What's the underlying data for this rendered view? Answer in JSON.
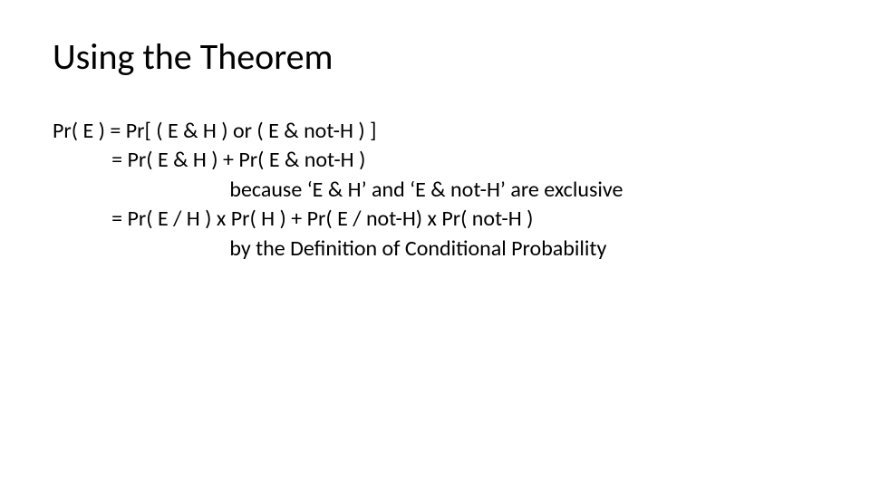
{
  "slide": {
    "title": "Using the Theorem",
    "text_color": "#000000",
    "background_color": "#ffffff",
    "title_fontsize": 40,
    "body_fontsize": 24,
    "lines": [
      "Pr( E ) = Pr[ ( E & H ) or ( E & not-H ) ]",
      "            = Pr( E & H ) + Pr( E & not-H )",
      "                                    because ‘E & H’ and ‘E & not-H’ are exclusive",
      "            = Pr( E / H ) x Pr( H ) + Pr( E / not-H) x Pr( not-H )",
      "                                    by the Definition of Conditional Probability"
    ]
  }
}
